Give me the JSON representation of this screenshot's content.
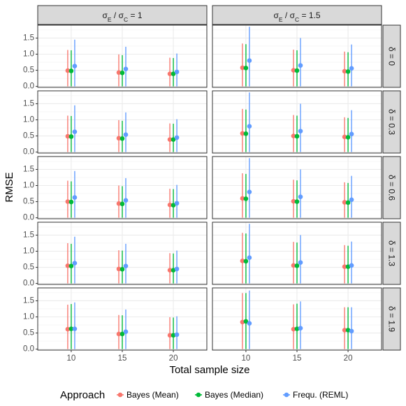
{
  "chart_data": {
    "type": "scatter",
    "xlabel": "Total sample size",
    "ylabel": "RMSE",
    "x_ticks": [
      "10",
      "15",
      "20"
    ],
    "y_ticks": [
      "0.0",
      "0.5",
      "1.0",
      "1.5"
    ],
    "ylim": [
      -0.03,
      1.9
    ],
    "columns": [
      {
        "base": "σ",
        "sub1": "E",
        "mid": " / σ",
        "sub2": "C",
        "tail": " = 1"
      },
      {
        "base": "σ",
        "sub1": "E",
        "mid": " / σ",
        "sub2": "C",
        "tail": " = 1.5"
      }
    ],
    "rows": [
      "δ = 0",
      "δ = 0.3",
      "δ = 0.6",
      "δ = 1.3",
      "δ = 1.9"
    ],
    "legend": {
      "title": "Approach",
      "position": "bottom",
      "entries": [
        {
          "label": "Bayes (Mean)",
          "color": "#F8766D"
        },
        {
          "label": "Bayes (Median)",
          "color": "#00BA38"
        },
        {
          "label": "Frequ. (REML)",
          "color": "#619CFF"
        }
      ]
    },
    "grid": true,
    "panels": [
      {
        "row": 0,
        "col": 0,
        "points": [
          [
            [
              0.49,
              0.0,
              1.13
            ],
            [
              0.48,
              0.0,
              1.12
            ],
            [
              0.63,
              0.0,
              1.45
            ]
          ],
          [
            [
              0.43,
              0.0,
              0.99
            ],
            [
              0.42,
              0.0,
              0.97
            ],
            [
              0.54,
              0.0,
              1.23
            ]
          ],
          [
            [
              0.39,
              0.0,
              0.89
            ],
            [
              0.39,
              0.0,
              0.88
            ],
            [
              0.45,
              0.0,
              1.02
            ]
          ]
        ]
      },
      {
        "row": 0,
        "col": 1,
        "points": [
          [
            [
              0.58,
              0.0,
              1.33
            ],
            [
              0.57,
              0.0,
              1.31
            ],
            [
              0.8,
              0.0,
              1.85
            ]
          ],
          [
            [
              0.5,
              0.0,
              1.14
            ],
            [
              0.49,
              0.0,
              1.12
            ],
            [
              0.65,
              0.0,
              1.5
            ]
          ],
          [
            [
              0.47,
              0.0,
              1.08
            ],
            [
              0.46,
              0.0,
              1.06
            ],
            [
              0.56,
              0.0,
              1.3
            ]
          ]
        ]
      },
      {
        "row": 1,
        "col": 0,
        "points": [
          [
            [
              0.49,
              0.0,
              1.13
            ],
            [
              0.48,
              0.0,
              1.12
            ],
            [
              0.63,
              0.0,
              1.45
            ]
          ],
          [
            [
              0.43,
              0.0,
              0.99
            ],
            [
              0.42,
              0.0,
              0.97
            ],
            [
              0.54,
              0.0,
              1.23
            ]
          ],
          [
            [
              0.39,
              0.0,
              0.89
            ],
            [
              0.39,
              0.0,
              0.88
            ],
            [
              0.45,
              0.0,
              1.02
            ]
          ]
        ]
      },
      {
        "row": 1,
        "col": 1,
        "points": [
          [
            [
              0.58,
              0.0,
              1.34
            ],
            [
              0.57,
              0.0,
              1.32
            ],
            [
              0.8,
              0.0,
              1.85
            ]
          ],
          [
            [
              0.5,
              0.0,
              1.15
            ],
            [
              0.49,
              0.0,
              1.13
            ],
            [
              0.65,
              0.0,
              1.5
            ]
          ],
          [
            [
              0.47,
              0.0,
              1.08
            ],
            [
              0.46,
              0.0,
              1.06
            ],
            [
              0.56,
              0.0,
              1.3
            ]
          ]
        ]
      },
      {
        "row": 2,
        "col": 0,
        "points": [
          [
            [
              0.5,
              0.0,
              1.15
            ],
            [
              0.49,
              0.0,
              1.13
            ],
            [
              0.63,
              0.0,
              1.45
            ]
          ],
          [
            [
              0.44,
              0.0,
              1.0
            ],
            [
              0.43,
              0.0,
              0.98
            ],
            [
              0.54,
              0.0,
              1.23
            ]
          ],
          [
            [
              0.4,
              0.0,
              0.9
            ],
            [
              0.39,
              0.0,
              0.89
            ],
            [
              0.45,
              0.0,
              1.02
            ]
          ]
        ]
      },
      {
        "row": 2,
        "col": 1,
        "points": [
          [
            [
              0.6,
              0.0,
              1.38
            ],
            [
              0.59,
              0.0,
              1.36
            ],
            [
              0.8,
              0.0,
              1.85
            ]
          ],
          [
            [
              0.51,
              0.0,
              1.18
            ],
            [
              0.5,
              0.0,
              1.16
            ],
            [
              0.65,
              0.0,
              1.5
            ]
          ],
          [
            [
              0.48,
              0.0,
              1.1
            ],
            [
              0.47,
              0.0,
              1.08
            ],
            [
              0.56,
              0.0,
              1.3
            ]
          ]
        ]
      },
      {
        "row": 3,
        "col": 0,
        "points": [
          [
            [
              0.55,
              0.0,
              1.25
            ],
            [
              0.54,
              0.0,
              1.23
            ],
            [
              0.63,
              0.0,
              1.45
            ]
          ],
          [
            [
              0.45,
              0.0,
              1.03
            ],
            [
              0.44,
              0.0,
              1.02
            ],
            [
              0.54,
              0.0,
              1.23
            ]
          ],
          [
            [
              0.41,
              0.0,
              0.94
            ],
            [
              0.41,
              0.0,
              0.93
            ],
            [
              0.45,
              0.0,
              1.02
            ]
          ]
        ]
      },
      {
        "row": 3,
        "col": 1,
        "points": [
          [
            [
              0.7,
              0.0,
              1.57
            ],
            [
              0.69,
              0.0,
              1.55
            ],
            [
              0.8,
              0.0,
              1.85
            ]
          ],
          [
            [
              0.56,
              0.0,
              1.29
            ],
            [
              0.55,
              0.0,
              1.27
            ],
            [
              0.65,
              0.0,
              1.5
            ]
          ],
          [
            [
              0.52,
              0.0,
              1.19
            ],
            [
              0.52,
              0.0,
              1.17
            ],
            [
              0.56,
              0.0,
              1.3
            ]
          ]
        ]
      },
      {
        "row": 4,
        "col": 0,
        "points": [
          [
            [
              0.62,
              0.0,
              1.38
            ],
            [
              0.63,
              0.0,
              1.4
            ],
            [
              0.63,
              0.0,
              1.45
            ]
          ],
          [
            [
              0.47,
              0.0,
              1.06
            ],
            [
              0.47,
              0.0,
              1.05
            ],
            [
              0.54,
              0.0,
              1.23
            ]
          ],
          [
            [
              0.43,
              0.0,
              0.99
            ],
            [
              0.43,
              0.0,
              0.98
            ],
            [
              0.45,
              0.0,
              1.02
            ]
          ]
        ]
      },
      {
        "row": 4,
        "col": 1,
        "points": [
          [
            [
              0.84,
              0.0,
              1.74
            ],
            [
              0.86,
              0.0,
              1.74
            ],
            [
              0.8,
              0.0,
              1.82
            ]
          ],
          [
            [
              0.62,
              0.0,
              1.39
            ],
            [
              0.63,
              0.0,
              1.41
            ],
            [
              0.65,
              0.0,
              1.48
            ]
          ],
          [
            [
              0.59,
              0.0,
              1.3
            ],
            [
              0.59,
              0.0,
              1.3
            ],
            [
              0.56,
              0.0,
              1.3
            ]
          ]
        ]
      }
    ]
  }
}
